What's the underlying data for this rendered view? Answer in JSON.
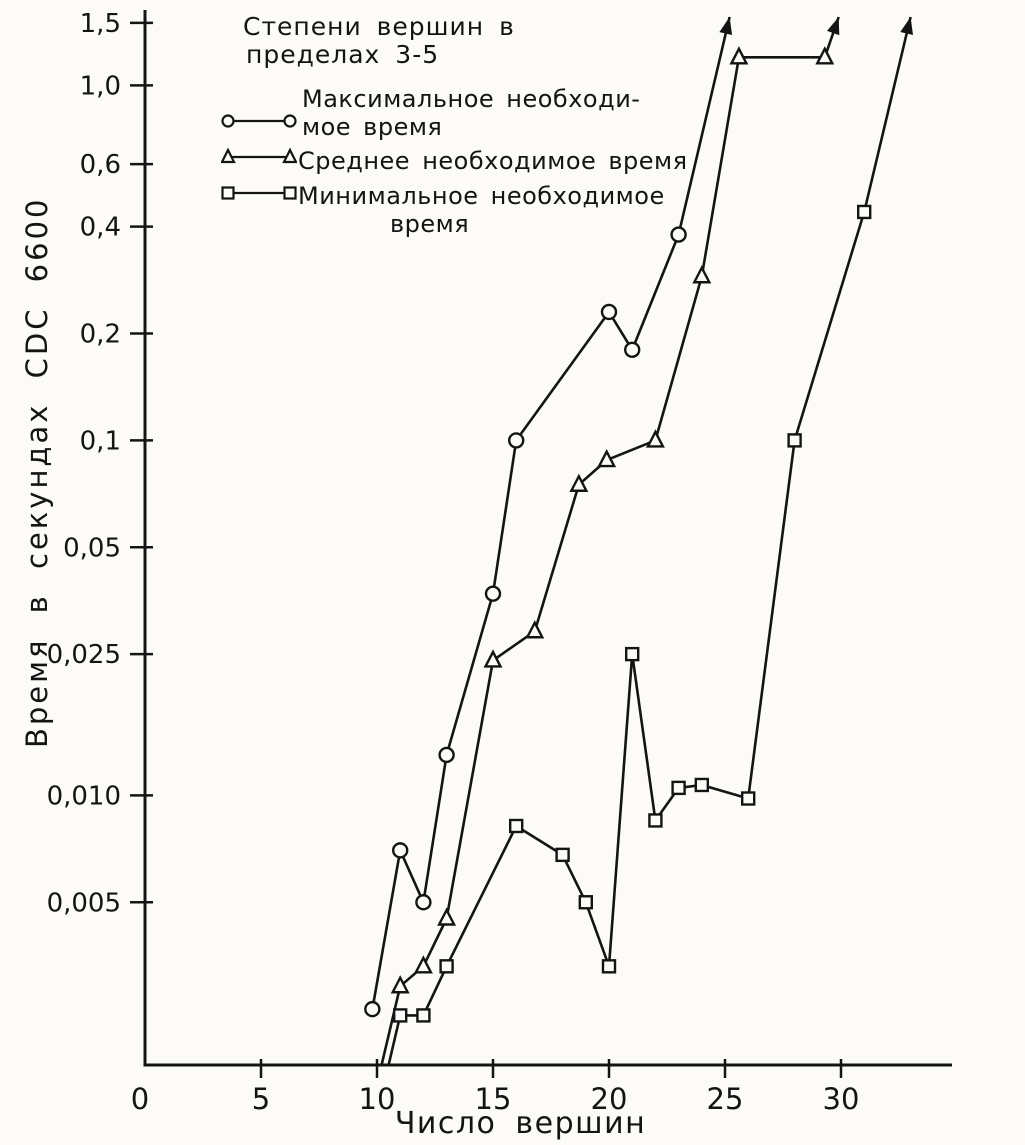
{
  "page": {
    "background": "#fcfbf7",
    "ink": "#141414"
  },
  "chart_data": {
    "type": "line",
    "title": "Степени вершин в пределах 3-5",
    "title_lines": [
      "Степени вершин в",
      "пределах 3-5"
    ],
    "xlabel": "Число вершин",
    "ylabel": "Время в секундах CDC 6600",
    "y_scale": "log",
    "grid": false,
    "legend_position": "top-left",
    "xlim": [
      0,
      34.8
    ],
    "ylim": [
      0.00174,
      1.9
    ],
    "x_ticks": [
      0,
      5,
      10,
      15,
      20,
      25,
      30
    ],
    "x_tick_labels": [
      "0",
      "5",
      "10",
      "15",
      "20",
      "25",
      "30"
    ],
    "y_ticks": [
      1.5,
      1.0,
      0.6,
      0.4,
      0.2,
      0.1,
      0.05,
      0.025,
      0.01,
      0.005
    ],
    "y_tick_labels": [
      "1,5",
      "1,0",
      "0,6",
      "0,4",
      "0,2",
      "0,1",
      "0,05",
      "0,025",
      "0,010",
      "0,005"
    ],
    "series": [
      {
        "name": "Максимальное необходимое время",
        "legend_lines": [
          "Максимальное необходи-",
          "мое время"
        ],
        "marker": "circle",
        "points": [
          [
            9.8,
            0.0025
          ],
          [
            11,
            0.007
          ],
          [
            12,
            0.005
          ],
          [
            13,
            0.013
          ],
          [
            15,
            0.037
          ],
          [
            16,
            0.1
          ],
          [
            20,
            0.23
          ],
          [
            21,
            0.18
          ],
          [
            23,
            0.38
          ]
        ],
        "arrow_to_x": 25.2,
        "off_scale_end": true
      },
      {
        "name": "Среднее необходимое время",
        "legend_lines": [
          "Среднее необходимое время"
        ],
        "marker": "triangle",
        "points": [
          [
            10.2,
            0.00174
          ],
          [
            11,
            0.0029
          ],
          [
            12,
            0.0033
          ],
          [
            13,
            0.0045
          ],
          [
            15,
            0.024
          ],
          [
            16.8,
            0.029
          ],
          [
            18.7,
            0.075
          ],
          [
            19.9,
            0.088
          ],
          [
            22,
            0.1
          ],
          [
            24,
            0.29
          ],
          [
            25.6,
            1.2
          ],
          [
            29.3,
            1.2
          ]
        ],
        "arrow_to_x": 29.9,
        "off_scale_end": true
      },
      {
        "name": "Минимальное необходимое время",
        "legend_lines": [
          "Минимальное необходимое",
          "время"
        ],
        "marker": "square",
        "points": [
          [
            10.5,
            0.00174
          ],
          [
            11,
            0.0024
          ],
          [
            12,
            0.0024
          ],
          [
            13,
            0.0033
          ],
          [
            16,
            0.0082
          ],
          [
            18,
            0.0068
          ],
          [
            19,
            0.005
          ],
          [
            20,
            0.0033
          ],
          [
            21,
            0.025
          ],
          [
            22,
            0.0085
          ],
          [
            23,
            0.0105
          ],
          [
            24,
            0.0107
          ],
          [
            26,
            0.0098
          ],
          [
            28,
            0.1
          ],
          [
            31,
            0.44
          ]
        ],
        "arrow_to_x": 33.0,
        "off_scale_end": true
      }
    ]
  }
}
